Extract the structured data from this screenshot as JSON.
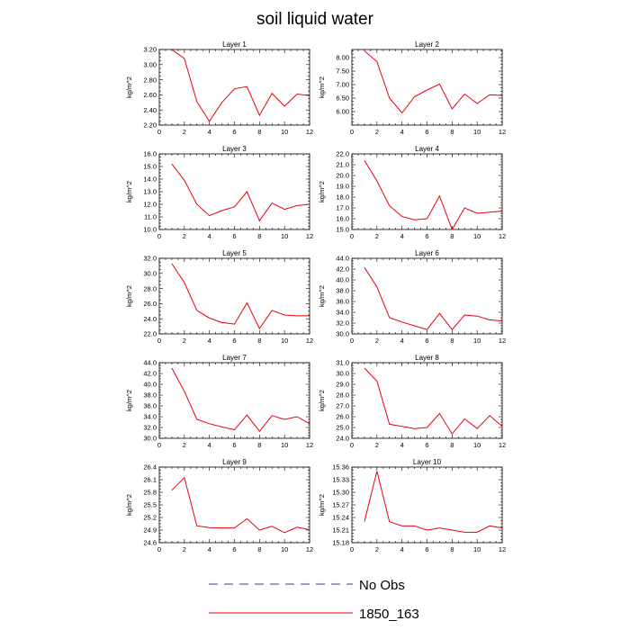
{
  "figure": {
    "title": "soil liquid water",
    "legend": [
      {
        "label": "No Obs",
        "color": "#3a3aa8",
        "style": "dashed"
      },
      {
        "label": "1850_163",
        "color": "#e8000b",
        "style": "solid"
      }
    ]
  },
  "chart_data": [
    {
      "type": "line",
      "title": "Layer 1",
      "ylabel": "kg/m^2",
      "xlim": [
        0,
        12
      ],
      "ylim": [
        2.2,
        3.2
      ],
      "x_ticks": [
        0,
        2,
        4,
        6,
        8,
        10,
        12
      ],
      "y_ticks": [
        "2.20",
        "2.40",
        "2.60",
        "2.80",
        "3.00",
        "3.20"
      ],
      "series": [
        {
          "name": "1850_163",
          "x": [
            1,
            2,
            3,
            4,
            5,
            6,
            7,
            8,
            9,
            10,
            11,
            12
          ],
          "values": [
            3.2,
            3.08,
            2.51,
            2.25,
            2.5,
            2.68,
            2.71,
            2.33,
            2.62,
            2.45,
            2.61,
            2.59
          ]
        }
      ]
    },
    {
      "type": "line",
      "title": "Layer 2",
      "ylabel": "kg/m^2",
      "xlim": [
        0,
        12
      ],
      "ylim": [
        5.5,
        8.3
      ],
      "x_ticks": [
        0,
        2,
        4,
        6,
        8,
        10,
        12
      ],
      "y_ticks": [
        "6.00",
        "6.50",
        "7.00",
        "7.50",
        "8.00"
      ],
      "series": [
        {
          "name": "1850_163",
          "x": [
            1,
            2,
            3,
            4,
            5,
            6,
            7,
            8,
            9,
            10,
            11,
            12
          ],
          "values": [
            8.25,
            7.85,
            6.5,
            5.95,
            6.55,
            6.8,
            7.02,
            6.1,
            6.65,
            6.3,
            6.62,
            6.6
          ]
        }
      ]
    },
    {
      "type": "line",
      "title": "Layer 3",
      "ylabel": "kg/m^2",
      "xlim": [
        0,
        12
      ],
      "ylim": [
        10.0,
        16.0
      ],
      "x_ticks": [
        0,
        2,
        4,
        6,
        8,
        10,
        12
      ],
      "y_ticks": [
        "10.0",
        "11.0",
        "12.0",
        "13.0",
        "14.0",
        "15.0",
        "16.0"
      ],
      "series": [
        {
          "name": "1850_163",
          "x": [
            1,
            2,
            3,
            4,
            5,
            6,
            7,
            8,
            9,
            10,
            11,
            12
          ],
          "values": [
            15.2,
            13.9,
            12.0,
            11.1,
            11.5,
            11.8,
            13.0,
            10.7,
            12.1,
            11.6,
            11.9,
            12.0
          ]
        }
      ]
    },
    {
      "type": "line",
      "title": "Layer 4",
      "ylabel": "kg/m^2",
      "xlim": [
        0,
        12
      ],
      "ylim": [
        15.0,
        22.0
      ],
      "x_ticks": [
        0,
        2,
        4,
        6,
        8,
        10,
        12
      ],
      "y_ticks": [
        "15.0",
        "16.0",
        "17.0",
        "18.0",
        "19.0",
        "20.0",
        "21.0",
        "22.0"
      ],
      "series": [
        {
          "name": "1850_163",
          "x": [
            1,
            2,
            3,
            4,
            5,
            6,
            7,
            8,
            9,
            10,
            11,
            12
          ],
          "values": [
            21.4,
            19.5,
            17.2,
            16.2,
            15.9,
            16.0,
            18.1,
            15.0,
            17.0,
            16.5,
            16.6,
            16.7
          ]
        }
      ]
    },
    {
      "type": "line",
      "title": "Layer 5",
      "ylabel": "kg/m^2",
      "xlim": [
        0,
        12
      ],
      "ylim": [
        22.0,
        32.0
      ],
      "x_ticks": [
        0,
        2,
        4,
        6,
        8,
        10,
        12
      ],
      "y_ticks": [
        "22.0",
        "24.0",
        "26.0",
        "28.0",
        "30.0",
        "32.0"
      ],
      "series": [
        {
          "name": "1850_163",
          "x": [
            1,
            2,
            3,
            4,
            5,
            6,
            7,
            8,
            9,
            10,
            11,
            12
          ],
          "values": [
            31.3,
            28.8,
            25.1,
            24.1,
            23.5,
            23.3,
            26.1,
            22.7,
            25.1,
            24.5,
            24.4,
            24.4
          ]
        }
      ]
    },
    {
      "type": "line",
      "title": "Layer 6",
      "ylabel": "kg/m^2",
      "xlim": [
        0,
        12
      ],
      "ylim": [
        30.0,
        44.0
      ],
      "x_ticks": [
        0,
        2,
        4,
        6,
        8,
        10,
        12
      ],
      "y_ticks": [
        "30.0",
        "32.0",
        "34.0",
        "36.0",
        "38.0",
        "40.0",
        "42.0",
        "44.0"
      ],
      "series": [
        {
          "name": "1850_163",
          "x": [
            1,
            2,
            3,
            4,
            5,
            6,
            7,
            8,
            9,
            10,
            11,
            12
          ],
          "values": [
            42.3,
            38.7,
            33.0,
            32.2,
            31.5,
            30.8,
            33.8,
            30.8,
            33.5,
            33.3,
            32.6,
            32.4
          ]
        }
      ]
    },
    {
      "type": "line",
      "title": "Layer 7",
      "ylabel": "kg/m^2",
      "xlim": [
        0,
        12
      ],
      "ylim": [
        30.0,
        44.0
      ],
      "x_ticks": [
        0,
        2,
        4,
        6,
        8,
        10,
        12
      ],
      "y_ticks": [
        "30.0",
        "32.0",
        "34.0",
        "36.0",
        "38.0",
        "40.0",
        "42.0",
        "44.0"
      ],
      "series": [
        {
          "name": "1850_163",
          "x": [
            1,
            2,
            3,
            4,
            5,
            6,
            7,
            8,
            9,
            10,
            11,
            12
          ],
          "values": [
            43.0,
            38.7,
            33.5,
            32.7,
            32.1,
            31.6,
            34.3,
            31.3,
            34.2,
            33.5,
            34.0,
            32.7
          ]
        }
      ]
    },
    {
      "type": "line",
      "title": "Layer 8",
      "ylabel": "kg/m^2",
      "xlim": [
        0,
        12
      ],
      "ylim": [
        24.0,
        31.0
      ],
      "x_ticks": [
        0,
        2,
        4,
        6,
        8,
        10,
        12
      ],
      "y_ticks": [
        "24.0",
        "25.0",
        "26.0",
        "27.0",
        "28.0",
        "29.0",
        "30.0",
        "31.0"
      ],
      "series": [
        {
          "name": "1850_163",
          "x": [
            1,
            2,
            3,
            4,
            5,
            6,
            7,
            8,
            9,
            10,
            11,
            12
          ],
          "values": [
            30.5,
            29.3,
            25.3,
            25.1,
            24.9,
            25.0,
            26.3,
            24.4,
            25.8,
            24.9,
            26.1,
            25.1
          ]
        }
      ]
    },
    {
      "type": "line",
      "title": "Layer 9",
      "ylabel": "kg/m^2",
      "xlim": [
        0,
        12
      ],
      "ylim": [
        24.6,
        26.4
      ],
      "x_ticks": [
        0,
        2,
        4,
        6,
        8,
        10,
        12
      ],
      "y_ticks": [
        "24.6",
        "24.9",
        "25.2",
        "25.5",
        "25.8",
        "26.1",
        "26.4"
      ],
      "series": [
        {
          "name": "1850_163",
          "x": [
            1,
            2,
            3,
            4,
            5,
            6,
            7,
            8,
            9,
            10,
            11,
            12
          ],
          "values": [
            25.85,
            26.15,
            25.0,
            24.96,
            24.95,
            24.95,
            25.17,
            24.9,
            24.99,
            24.84,
            24.97,
            24.91
          ]
        }
      ]
    },
    {
      "type": "line",
      "title": "Layer 10",
      "ylabel": "kg/m^2",
      "xlim": [
        0,
        12
      ],
      "ylim": [
        15.18,
        15.36
      ],
      "x_ticks": [
        0,
        2,
        4,
        6,
        8,
        10,
        12
      ],
      "y_ticks": [
        "15.18",
        "15.21",
        "15.24",
        "15.27",
        "15.30",
        "15.33",
        "15.36"
      ],
      "series": [
        {
          "name": "1850_163",
          "x": [
            1,
            2,
            3,
            4,
            5,
            6,
            7,
            8,
            9,
            10,
            11,
            12
          ],
          "values": [
            15.23,
            15.35,
            15.23,
            15.22,
            15.22,
            15.21,
            15.215,
            15.21,
            15.205,
            15.205,
            15.22,
            15.215
          ]
        }
      ]
    }
  ]
}
